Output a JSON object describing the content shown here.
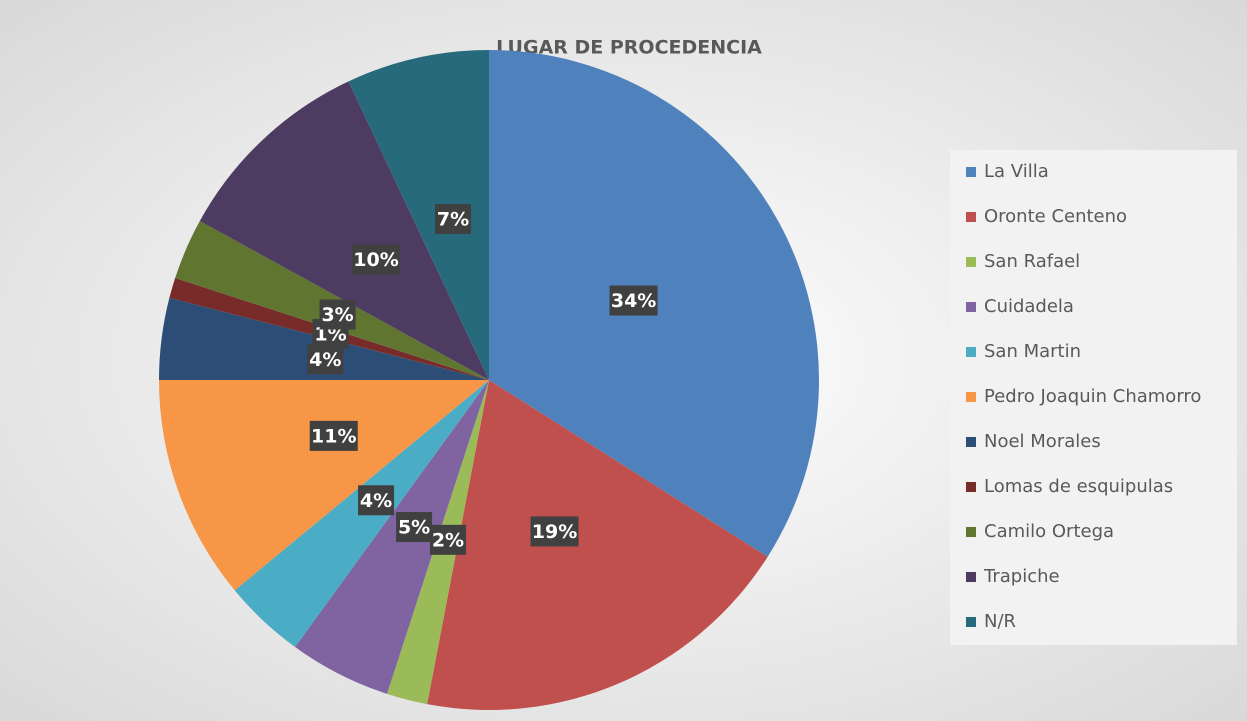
{
  "chart_data": {
    "type": "pie",
    "title": "LUGAR DE PROCEDENCIA",
    "categories": [
      "La Villa",
      "Oronte Centeno",
      "San Rafael",
      "Cuidadela",
      "San Martin",
      "Pedro Joaquin Chamorro",
      "Noel Morales",
      "Lomas de esquipulas",
      "Camilo Ortega",
      "Trapiche",
      "N/R"
    ],
    "values": [
      34,
      19,
      2,
      5,
      4,
      11,
      4,
      1,
      3,
      10,
      7
    ],
    "value_labels": [
      "34%",
      "19%",
      "2%",
      "5%",
      "4%",
      "11%",
      "4%",
      "1%",
      "3%",
      "10%",
      "7%"
    ],
    "colors": [
      "#4f81bd",
      "#c0504d",
      "#9bbb59",
      "#8064a2",
      "#4bacc6",
      "#f79646",
      "#2c4d75",
      "#772c2a",
      "#5f7530",
      "#4d3b62",
      "#276a7c"
    ],
    "legend": "right"
  }
}
